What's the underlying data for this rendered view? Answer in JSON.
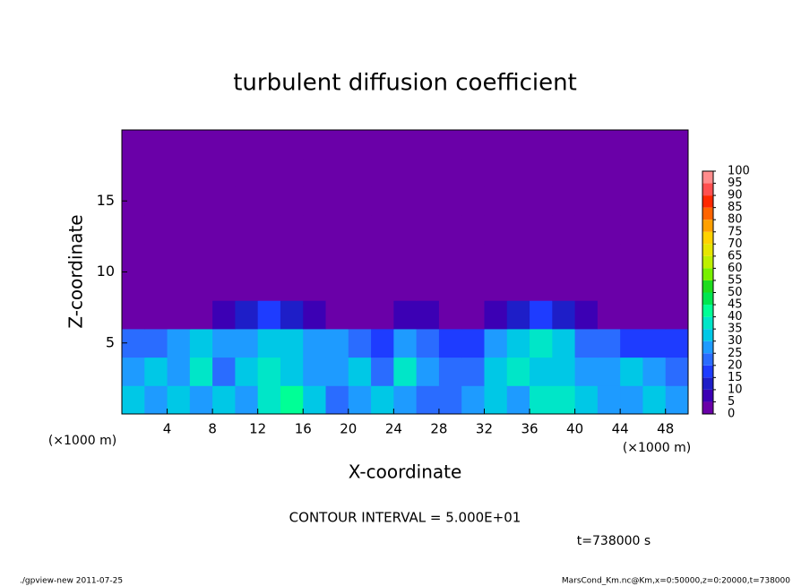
{
  "chart_data": {
    "type": "heatmap",
    "title": "turbulent diffusion coefficient",
    "xlabel": "X-coordinate",
    "ylabel": "Z-coordinate",
    "x_unit": "(×1000 m)",
    "y_unit": "(×1000 m)",
    "xlim": [
      0,
      50
    ],
    "xticks": [
      4,
      8,
      12,
      16,
      20,
      24,
      28,
      32,
      36,
      40,
      44,
      48
    ],
    "ylim": [
      0,
      20
    ],
    "yticks": [
      5,
      10,
      15
    ],
    "x_edges": [
      0,
      2,
      4,
      6,
      8,
      10,
      12,
      14,
      16,
      18,
      20,
      22,
      24,
      26,
      28,
      30,
      32,
      34,
      36,
      38,
      40,
      42,
      44,
      46,
      48,
      50
    ],
    "z_edges": [
      0,
      2,
      4,
      6,
      8,
      10,
      12,
      14,
      16,
      18,
      20
    ],
    "values": [
      [
        30,
        28,
        32,
        25,
        30,
        28,
        35,
        40,
        30,
        22,
        25,
        30,
        28,
        22,
        20,
        25,
        30,
        28,
        35,
        38,
        30,
        28,
        25,
        30,
        28
      ],
      [
        25,
        30,
        28,
        35,
        22,
        30,
        35,
        32,
        25,
        28,
        30,
        22,
        35,
        25,
        20,
        22,
        30,
        35,
        32,
        30,
        25,
        28,
        30,
        25,
        22
      ],
      [
        20,
        22,
        28,
        30,
        25,
        28,
        32,
        30,
        28,
        25,
        20,
        18,
        25,
        22,
        15,
        18,
        25,
        30,
        35,
        32,
        22,
        20,
        18,
        15,
        15
      ],
      [
        0,
        0,
        0,
        0,
        5,
        10,
        15,
        10,
        5,
        0,
        0,
        0,
        5,
        5,
        0,
        0,
        5,
        10,
        15,
        10,
        5,
        0,
        0,
        0,
        0
      ],
      [
        0,
        0,
        0,
        0,
        0,
        0,
        0,
        0,
        0,
        0,
        0,
        0,
        0,
        0,
        0,
        0,
        0,
        0,
        0,
        0,
        0,
        0,
        0,
        0,
        0
      ],
      [
        0,
        0,
        0,
        0,
        0,
        0,
        0,
        0,
        0,
        0,
        0,
        0,
        0,
        0,
        0,
        0,
        0,
        0,
        0,
        0,
        0,
        0,
        0,
        0,
        0
      ],
      [
        0,
        0,
        0,
        0,
        0,
        0,
        0,
        0,
        0,
        0,
        0,
        0,
        0,
        0,
        0,
        0,
        0,
        0,
        0,
        0,
        0,
        0,
        0,
        0,
        0
      ],
      [
        0,
        0,
        0,
        0,
        0,
        0,
        0,
        0,
        0,
        0,
        0,
        0,
        0,
        0,
        0,
        0,
        0,
        0,
        0,
        0,
        0,
        0,
        0,
        0,
        0
      ],
      [
        0,
        0,
        0,
        0,
        0,
        0,
        0,
        0,
        0,
        0,
        0,
        0,
        0,
        0,
        0,
        0,
        0,
        0,
        0,
        0,
        0,
        0,
        0,
        0,
        0
      ],
      [
        0,
        0,
        0,
        0,
        0,
        0,
        0,
        0,
        0,
        0,
        0,
        0,
        0,
        0,
        0,
        0,
        0,
        0,
        0,
        0,
        0,
        0,
        0,
        0,
        0
      ]
    ],
    "levels": [
      0,
      5,
      10,
      15,
      20,
      25,
      30,
      35,
      40,
      45,
      50,
      55,
      60,
      65,
      70,
      75,
      80,
      85,
      90,
      95,
      100
    ],
    "colors": [
      "#6a00a8",
      "#3c00b4",
      "#1e1ec8",
      "#1e3cff",
      "#2a6cff",
      "#1e9bff",
      "#00c8e6",
      "#00e6c8",
      "#00ff96",
      "#00e650",
      "#1edc1e",
      "#78f000",
      "#bef000",
      "#e6e600",
      "#ffd200",
      "#ffa000",
      "#ff6400",
      "#ff2800",
      "#ff5050",
      "#ff8c8c"
    ],
    "contour_note": "CONTOUR INTERVAL = 5.000E+01",
    "time_note": "t=738000 s",
    "footer_left": "./gpview-new  2011-07-25",
    "footer_right": "MarsCond_Km.nc@Km,x=0:50000,z=0:20000,t=738000"
  }
}
